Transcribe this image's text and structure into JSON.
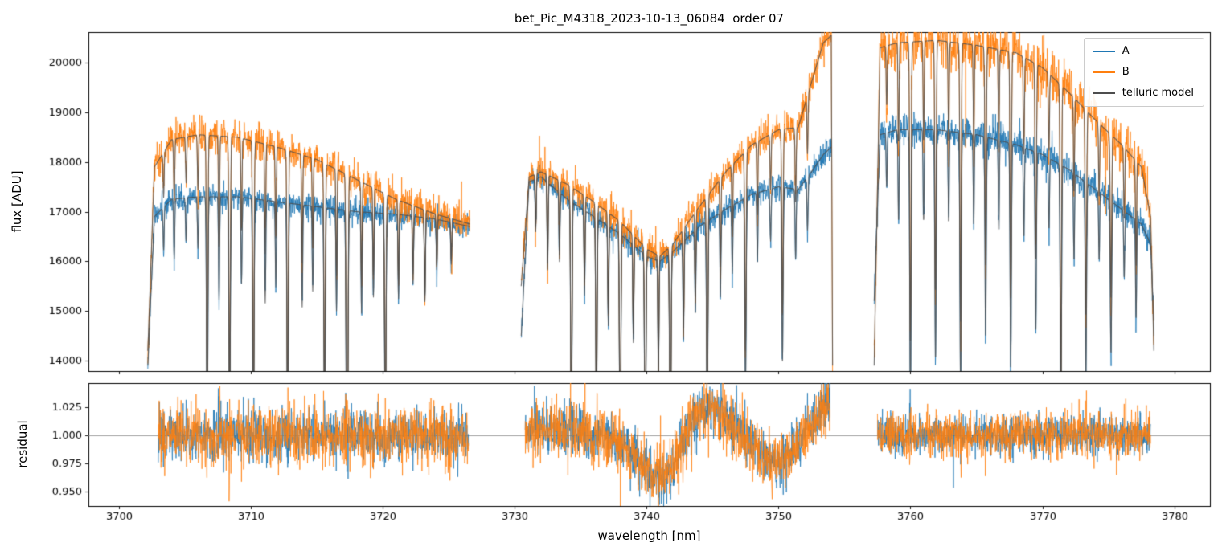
{
  "chart_data": {
    "type": "line",
    "title": "bet_Pic_M4318_2023-10-13_06084  order 07",
    "xlabel": "wavelength [nm]",
    "xlim": [
      3697.7,
      3782.7
    ],
    "x_ticks": [
      3700,
      3710,
      3720,
      3730,
      3740,
      3750,
      3760,
      3770,
      3780
    ],
    "panels": [
      {
        "name": "flux",
        "ylabel": "flux [ADU]",
        "ylim": [
          13790,
          20615
        ],
        "yticks": [
          14000,
          15000,
          16000,
          17000,
          18000,
          19000,
          20000
        ],
        "ydecimals": 0
      },
      {
        "name": "residual",
        "ylabel": "residual",
        "ylim": [
          0.9375,
          1.0465
        ],
        "yticks": [
          0.95,
          0.975,
          1.0,
          1.025
        ],
        "ydecimals": 3,
        "hline": 1.0
      }
    ],
    "legend": [
      {
        "label": "A",
        "color": "#1f77b4"
      },
      {
        "label": "B",
        "color": "#ff7f0e"
      },
      {
        "label": "telluric model",
        "color": "#4d4d4d"
      }
    ],
    "flux_series": [
      {
        "name": "A",
        "color": "#1f77b4",
        "noise": [
          120,
          120,
          160
        ],
        "segments": [
          [
            [
              3702.2,
              13900
            ],
            [
              3702.7,
              16900
            ],
            [
              3704,
              17250
            ],
            [
              3706,
              17300
            ],
            [
              3709,
              17300
            ],
            [
              3712,
              17200
            ],
            [
              3715,
              17100
            ],
            [
              3718,
              17000
            ],
            [
              3721,
              16950
            ],
            [
              3724,
              16850
            ],
            [
              3726.6,
              16700
            ]
          ],
          [
            [
              3730.5,
              14500
            ],
            [
              3731.1,
              17600
            ],
            [
              3732,
              17700
            ],
            [
              3734,
              17250
            ],
            [
              3736,
              16900
            ],
            [
              3738,
              16550
            ],
            [
              3740,
              16100
            ],
            [
              3741,
              16000
            ],
            [
              3742,
              16200
            ],
            [
              3744,
              16700
            ],
            [
              3746,
              17050
            ],
            [
              3748,
              17350
            ],
            [
              3750,
              17500
            ],
            [
              3751.5,
              17450
            ],
            [
              3752.5,
              17800
            ],
            [
              3753.4,
              18150
            ],
            [
              3754.0,
              18300
            ]
          ],
          [
            [
              3757.25,
              15200
            ],
            [
              3757.7,
              18550
            ],
            [
              3759,
              18650
            ],
            [
              3762,
              18650
            ],
            [
              3765,
              18550
            ],
            [
              3768,
              18350
            ],
            [
              3770,
              18150
            ],
            [
              3772,
              17850
            ],
            [
              3774,
              17450
            ],
            [
              3776,
              17050
            ],
            [
              3777.5,
              16750
            ],
            [
              3778.2,
              16350
            ],
            [
              3778.45,
              14800
            ]
          ]
        ]
      },
      {
        "name": "B",
        "color": "#ff7f0e",
        "noise": [
          170,
          170,
          260
        ],
        "segments": [
          [
            [
              3702.2,
              14200
            ],
            [
              3702.7,
              17900
            ],
            [
              3704,
              18450
            ],
            [
              3706,
              18550
            ],
            [
              3709,
              18500
            ],
            [
              3712,
              18300
            ],
            [
              3715,
              18050
            ],
            [
              3718,
              17650
            ],
            [
              3721,
              17250
            ],
            [
              3724,
              16950
            ],
            [
              3726.6,
              16750
            ]
          ],
          [
            [
              3730.5,
              15500
            ],
            [
              3731.1,
              17700
            ],
            [
              3732,
              17800
            ],
            [
              3734,
              17550
            ],
            [
              3736,
              17200
            ],
            [
              3738,
              16800
            ],
            [
              3740,
              16250
            ],
            [
              3741,
              16100
            ],
            [
              3742,
              16350
            ],
            [
              3744,
              17100
            ],
            [
              3746,
              17800
            ],
            [
              3748,
              18350
            ],
            [
              3750,
              18650
            ],
            [
              3751.5,
              18700
            ],
            [
              3752.5,
              19600
            ],
            [
              3753.4,
              20400
            ],
            [
              3754.0,
              20550
            ],
            [
              3754.1,
              13900
            ]
          ],
          [
            [
              3757.25,
              13900
            ],
            [
              3757.7,
              20300
            ],
            [
              3759,
              20400
            ],
            [
              3762,
              20450
            ],
            [
              3765,
              20350
            ],
            [
              3768,
              20200
            ],
            [
              3770,
              19900
            ],
            [
              3772,
              19400
            ],
            [
              3774,
              18850
            ],
            [
              3776,
              18350
            ],
            [
              3777.5,
              17900
            ],
            [
              3778.2,
              16900
            ],
            [
              3778.45,
              14200
            ]
          ]
        ]
      }
    ],
    "telluric_lines": [
      [
        3703.4,
        0.05,
        0.04
      ],
      [
        3704.2,
        0.07,
        0.04
      ],
      [
        3705.1,
        0.05,
        0.04
      ],
      [
        3706.0,
        0.06,
        0.04
      ],
      [
        3706.7,
        0.3,
        0.05
      ],
      [
        3707.6,
        0.12,
        0.04
      ],
      [
        3708.4,
        0.28,
        0.05
      ],
      [
        3709.3,
        0.1,
        0.04
      ],
      [
        3710.2,
        0.32,
        0.05
      ],
      [
        3711.1,
        0.12,
        0.04
      ],
      [
        3711.9,
        0.1,
        0.04
      ],
      [
        3712.8,
        0.3,
        0.05
      ],
      [
        3713.9,
        0.12,
        0.04
      ],
      [
        3714.7,
        0.1,
        0.04
      ],
      [
        3715.6,
        0.28,
        0.05
      ],
      [
        3716.5,
        0.12,
        0.04
      ],
      [
        3717.3,
        0.42,
        0.06
      ],
      [
        3718.4,
        0.12,
        0.04
      ],
      [
        3719.3,
        0.1,
        0.04
      ],
      [
        3720.2,
        0.28,
        0.05
      ],
      [
        3721.2,
        0.1,
        0.04
      ],
      [
        3722.3,
        0.08,
        0.04
      ],
      [
        3723.2,
        0.1,
        0.04
      ],
      [
        3724.1,
        0.06,
        0.04
      ],
      [
        3725.2,
        0.05,
        0.04
      ],
      [
        3731.6,
        0.06,
        0.04
      ],
      [
        3732.5,
        0.1,
        0.04
      ],
      [
        3733.4,
        0.08,
        0.04
      ],
      [
        3734.3,
        0.3,
        0.05
      ],
      [
        3735.3,
        0.1,
        0.04
      ],
      [
        3736.2,
        0.25,
        0.05
      ],
      [
        3737.1,
        0.12,
        0.04
      ],
      [
        3738.0,
        0.3,
        0.05
      ],
      [
        3739.0,
        0.12,
        0.04
      ],
      [
        3739.9,
        0.28,
        0.05
      ],
      [
        3740.9,
        0.15,
        0.04
      ],
      [
        3741.8,
        0.3,
        0.05
      ],
      [
        3742.8,
        0.12,
        0.04
      ],
      [
        3743.7,
        0.1,
        0.04
      ],
      [
        3744.6,
        0.25,
        0.05
      ],
      [
        3745.6,
        0.1,
        0.04
      ],
      [
        3746.5,
        0.08,
        0.04
      ],
      [
        3747.5,
        0.22,
        0.05
      ],
      [
        3748.4,
        0.08,
        0.04
      ],
      [
        3749.4,
        0.06,
        0.04
      ],
      [
        3750.3,
        0.2,
        0.05
      ],
      [
        3751.3,
        0.08,
        0.04
      ],
      [
        3752.2,
        0.06,
        0.04
      ],
      [
        3758.2,
        0.06,
        0.04
      ],
      [
        3759.1,
        0.1,
        0.04
      ],
      [
        3760.0,
        0.3,
        0.05
      ],
      [
        3761.0,
        0.1,
        0.04
      ],
      [
        3761.9,
        0.25,
        0.05
      ],
      [
        3762.9,
        0.1,
        0.04
      ],
      [
        3763.8,
        0.28,
        0.05
      ],
      [
        3764.8,
        0.1,
        0.04
      ],
      [
        3765.7,
        0.22,
        0.05
      ],
      [
        3766.7,
        0.1,
        0.04
      ],
      [
        3767.6,
        0.25,
        0.05
      ],
      [
        3768.6,
        0.1,
        0.04
      ],
      [
        3769.5,
        0.2,
        0.05
      ],
      [
        3770.5,
        0.08,
        0.04
      ],
      [
        3771.4,
        0.3,
        0.05
      ],
      [
        3772.4,
        0.1,
        0.04
      ],
      [
        3773.3,
        0.22,
        0.05
      ],
      [
        3774.3,
        0.08,
        0.04
      ],
      [
        3775.2,
        0.18,
        0.05
      ],
      [
        3776.2,
        0.08,
        0.04
      ],
      [
        3777.1,
        0.12,
        0.04
      ]
    ],
    "residual": {
      "segments": [
        [
          3703.0,
          3726.5
        ],
        [
          3730.8,
          3753.9
        ],
        [
          3757.5,
          3778.2
        ]
      ],
      "trend": [
        [
          3703,
          1.0
        ],
        [
          3726.5,
          1.0
        ],
        [
          3730.8,
          1.0
        ],
        [
          3733,
          1.005
        ],
        [
          3735,
          1.004
        ],
        [
          3737,
          0.997
        ],
        [
          3739,
          0.985
        ],
        [
          3740.5,
          0.963
        ],
        [
          3741.3,
          0.96
        ],
        [
          3742.5,
          0.986
        ],
        [
          3743.5,
          1.012
        ],
        [
          3744.5,
          1.028
        ],
        [
          3745.5,
          1.021
        ],
        [
          3747,
          1.004
        ],
        [
          3748.5,
          0.984
        ],
        [
          3749.8,
          0.975
        ],
        [
          3751,
          0.986
        ],
        [
          3752,
          1.0
        ],
        [
          3753,
          1.018
        ],
        [
          3753.9,
          1.034
        ],
        [
          3757.5,
          1.0
        ],
        [
          3778.2,
          1.0
        ]
      ],
      "noise_A": [
        0.011,
        0.011,
        0.008
      ],
      "noise_B": [
        0.013,
        0.013,
        0.01
      ]
    }
  }
}
